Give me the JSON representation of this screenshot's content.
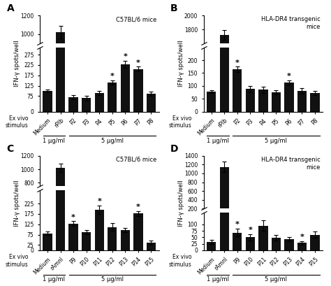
{
  "chart_data": [
    {
      "type": "bar",
      "panel_label": "A",
      "title": "C57BL/6 mice",
      "categories": [
        "Medium",
        "rPIb",
        "P2",
        "P3",
        "P4",
        "P5",
        "P6",
        "P7",
        "P8"
      ],
      "values": [
        100,
        1020,
        68,
        65,
        90,
        140,
        228,
        205,
        85
      ],
      "errors": [
        8,
        70,
        10,
        12,
        10,
        10,
        18,
        12,
        10
      ],
      "annotations": [
        null,
        null,
        null,
        null,
        null,
        "*",
        "*",
        "*",
        null
      ],
      "groups": [
        {
          "label": "1 μg/ml",
          "categories": [
            "Medium",
            "rPIb"
          ]
        },
        {
          "label": "5 μg/ml",
          "categories": [
            "P2",
            "P3",
            "P4",
            "P5",
            "P6",
            "P7",
            "P8"
          ]
        }
      ],
      "xlabel": "Ex vivo\nstimulus",
      "ylabel": "IFN-γ spots/well",
      "ylim": [
        0,
        1200
      ],
      "yticks": [
        0,
        75,
        125,
        175,
        225,
        275,
        1000,
        1200
      ],
      "y_break": [
        310,
        900
      ],
      "color": "#111111",
      "grid": false
    },
    {
      "type": "bar",
      "panel_label": "B",
      "title": "HLA-DR4 transgenic\nmice",
      "categories": [
        "Medium",
        "rPIb",
        "P2",
        "P3",
        "P4",
        "P5",
        "P6",
        "P7",
        "P8"
      ],
      "values": [
        78,
        1720,
        165,
        88,
        85,
        75,
        112,
        80,
        72
      ],
      "errors": [
        5,
        70,
        10,
        12,
        12,
        8,
        10,
        10,
        8
      ],
      "annotations": [
        null,
        null,
        "*",
        null,
        null,
        null,
        "*",
        null,
        null
      ],
      "groups": [
        {
          "label": "1 μg/ml",
          "categories": [
            "Medium",
            "rPIb"
          ]
        },
        {
          "label": "5 μg/ml",
          "categories": [
            "P2",
            "P3",
            "P4",
            "P5",
            "P6",
            "P7",
            "P8"
          ]
        }
      ],
      "xlabel": "Ex vivo\nstimulus",
      "ylabel": "IFN-γ spots/well",
      "ylim": [
        0,
        2000
      ],
      "yticks": [
        0,
        50,
        100,
        150,
        200,
        1800,
        2000
      ],
      "y_break": [
        250,
        1600
      ],
      "color": "#111111",
      "grid": false
    },
    {
      "type": "bar",
      "panel_label": "C",
      "title": "C57BL/6 mice",
      "categories": [
        "Medium",
        "rAmnI",
        "P9",
        "P10",
        "P11",
        "P12",
        "P13",
        "P14",
        "P15"
      ],
      "values": [
        82,
        1020,
        128,
        88,
        195,
        112,
        98,
        178,
        38
      ],
      "errors": [
        8,
        60,
        12,
        10,
        20,
        18,
        10,
        12,
        10
      ],
      "annotations": [
        null,
        null,
        "*",
        null,
        "*",
        null,
        null,
        "*",
        null
      ],
      "groups": [
        {
          "label": "1 μg/ml",
          "categories": [
            "Medium",
            "rAmnI"
          ]
        },
        {
          "label": "5 μg/ml",
          "categories": [
            "P9",
            "P10",
            "P11",
            "P12",
            "P13",
            "P14",
            "P15"
          ]
        }
      ],
      "xlabel": "Ex vivo\nstimulus",
      "ylabel": "IFN-γ spots/well",
      "ylim": [
        0,
        1200
      ],
      "yticks": [
        0,
        25,
        75,
        125,
        175,
        225,
        800,
        1000,
        1200
      ],
      "y_break": [
        290,
        750
      ],
      "color": "#111111",
      "grid": false
    },
    {
      "type": "bar",
      "panel_label": "D",
      "title": "HLA-DR4 transgenic\nmice",
      "categories": [
        "Medium",
        "rAmnI",
        "P9",
        "P10",
        "P11",
        "P12",
        "P13",
        "P14",
        "P15"
      ],
      "values": [
        32,
        1150,
        68,
        50,
        95,
        48,
        42,
        28,
        60
      ],
      "errors": [
        8,
        120,
        15,
        12,
        20,
        10,
        8,
        8,
        12
      ],
      "annotations": [
        null,
        null,
        "*",
        "*",
        null,
        null,
        null,
        "*",
        null
      ],
      "groups": [
        {
          "label": "1 μg/ml",
          "categories": [
            "Medium",
            "rAmnI"
          ]
        },
        {
          "label": "5 μg/ml",
          "categories": [
            "P9",
            "P10",
            "P11",
            "P12",
            "P13",
            "P14",
            "P15"
          ]
        }
      ],
      "xlabel": "Ex vivo\nstimulus",
      "ylabel": "IFN-γ spots/well",
      "ylim": [
        0,
        1400
      ],
      "yticks": [
        0,
        25,
        50,
        75,
        100,
        200,
        400,
        600,
        800,
        1000,
        1200,
        1400
      ],
      "y_break": [
        145,
        200
      ],
      "color": "#111111",
      "grid": false
    }
  ]
}
